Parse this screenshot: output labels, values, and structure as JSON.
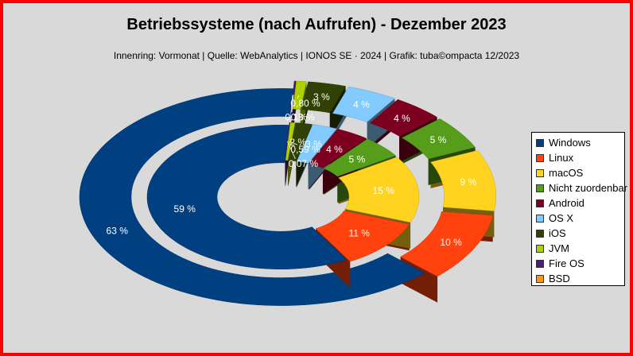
{
  "chart_data": {
    "type": "pie",
    "variant": "nested-donut-3d",
    "title": "Betriebssysteme (nach Aufrufen) - Dezember 2023",
    "subtitle": "Innenring: Vormonat | Quelle: WebAnalytics | IONOS SE · 2024 | Grafik: tuba©ompacta 12/2023",
    "legend_position": "right",
    "categories": [
      "Windows",
      "Linux",
      "macOS",
      "Nicht zuordenbar",
      "Android",
      "OS X",
      "iOS",
      "JVM",
      "Fire OS",
      "BSD"
    ],
    "colors": [
      "#003f80",
      "#ff420e",
      "#ffd320",
      "#579d1c",
      "#7e0021",
      "#83caff",
      "#314004",
      "#aecf00",
      "#4b1f6f",
      "#ff950e"
    ],
    "series": [
      {
        "name": "Vormonat",
        "ring": "inner",
        "values": [
          59,
          11,
          15,
          5,
          4,
          3,
          2,
          0.59,
          0.07,
          0
        ],
        "labels": [
          "59 %",
          "11 %",
          "15 %",
          "5 %",
          "4 %",
          "3 %",
          "2 %",
          "0,59 %",
          "0,07 %",
          ""
        ]
      },
      {
        "name": "Dezember 2023",
        "ring": "outer",
        "values": [
          63,
          10,
          9,
          5,
          4,
          4,
          3,
          0.8,
          0.13,
          0
        ],
        "labels": [
          "63 %",
          "10 %",
          "9 %",
          "5 %",
          "4 %",
          "4 %",
          "3 %",
          "0,80 %",
          "0,13 %",
          "0 %"
        ]
      }
    ]
  }
}
